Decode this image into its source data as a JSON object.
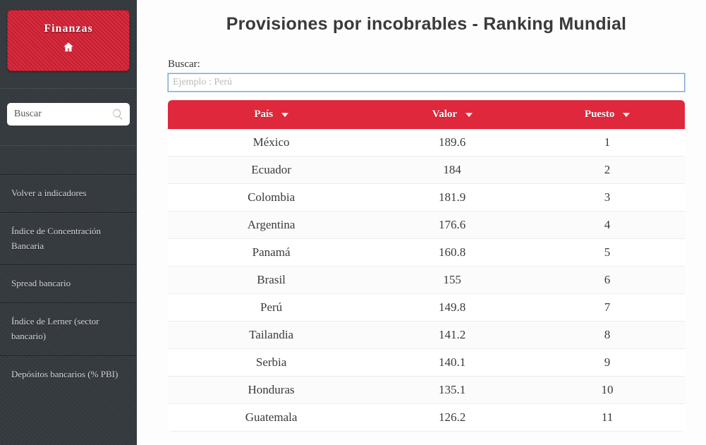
{
  "colors": {
    "sidebar_bg": "#353a3f",
    "brand_bg": "#d32135",
    "header_bg": "#e0283d",
    "row_border": "#ececec",
    "page_bg": "#fdfdfd",
    "text": "#3a3a3a",
    "input_border": "#7ea6d8"
  },
  "sidebar": {
    "brand_title": "Finanzas",
    "search_placeholder": "Buscar",
    "items": [
      {
        "label": "Volver a indicadores"
      },
      {
        "label": "Índice de Concentración Bancaria"
      },
      {
        "label": "Spread bancario"
      },
      {
        "label": "Índice de Lerner (sector bancario)"
      },
      {
        "label": "Depósitos bancarios (% PBI)"
      }
    ]
  },
  "main": {
    "title": "Provisiones por incobrables - Ranking Mundial",
    "search_label": "Buscar:",
    "search_placeholder": "Ejemplo : Perú"
  },
  "table": {
    "columns": [
      {
        "label": "País",
        "key": "pais",
        "width_pct": 40
      },
      {
        "label": "Valor",
        "key": "valor",
        "width_pct": 30
      },
      {
        "label": "Puesto",
        "key": "puesto",
        "width_pct": 30
      }
    ],
    "rows": [
      {
        "pais": "México",
        "valor": "189.6",
        "puesto": "1"
      },
      {
        "pais": "Ecuador",
        "valor": "184",
        "puesto": "2"
      },
      {
        "pais": "Colombia",
        "valor": "181.9",
        "puesto": "3"
      },
      {
        "pais": "Argentina",
        "valor": "176.6",
        "puesto": "4"
      },
      {
        "pais": "Panamá",
        "valor": "160.8",
        "puesto": "5"
      },
      {
        "pais": "Brasil",
        "valor": "155",
        "puesto": "6"
      },
      {
        "pais": "Perú",
        "valor": "149.8",
        "puesto": "7"
      },
      {
        "pais": "Tailandia",
        "valor": "141.2",
        "puesto": "8"
      },
      {
        "pais": "Serbia",
        "valor": "140.1",
        "puesto": "9"
      },
      {
        "pais": "Honduras",
        "valor": "135.1",
        "puesto": "10"
      },
      {
        "pais": "Guatemala",
        "valor": "126.2",
        "puesto": "11"
      }
    ]
  }
}
